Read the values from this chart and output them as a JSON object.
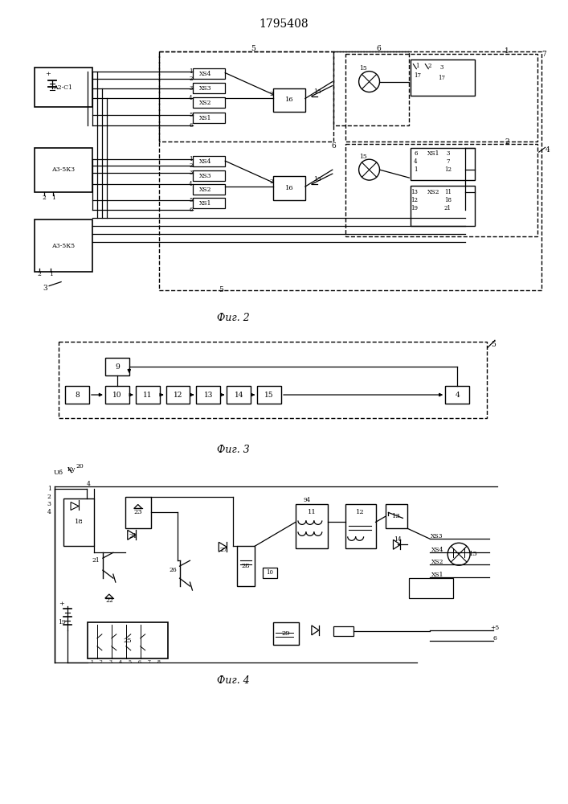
{
  "title": "1795408",
  "fig2_label": "Фиг. 2",
  "fig3_label": "Фиг. 3",
  "fig4_label": "Фиг. 4",
  "bg_color": "#ffffff",
  "lc": "#000000"
}
